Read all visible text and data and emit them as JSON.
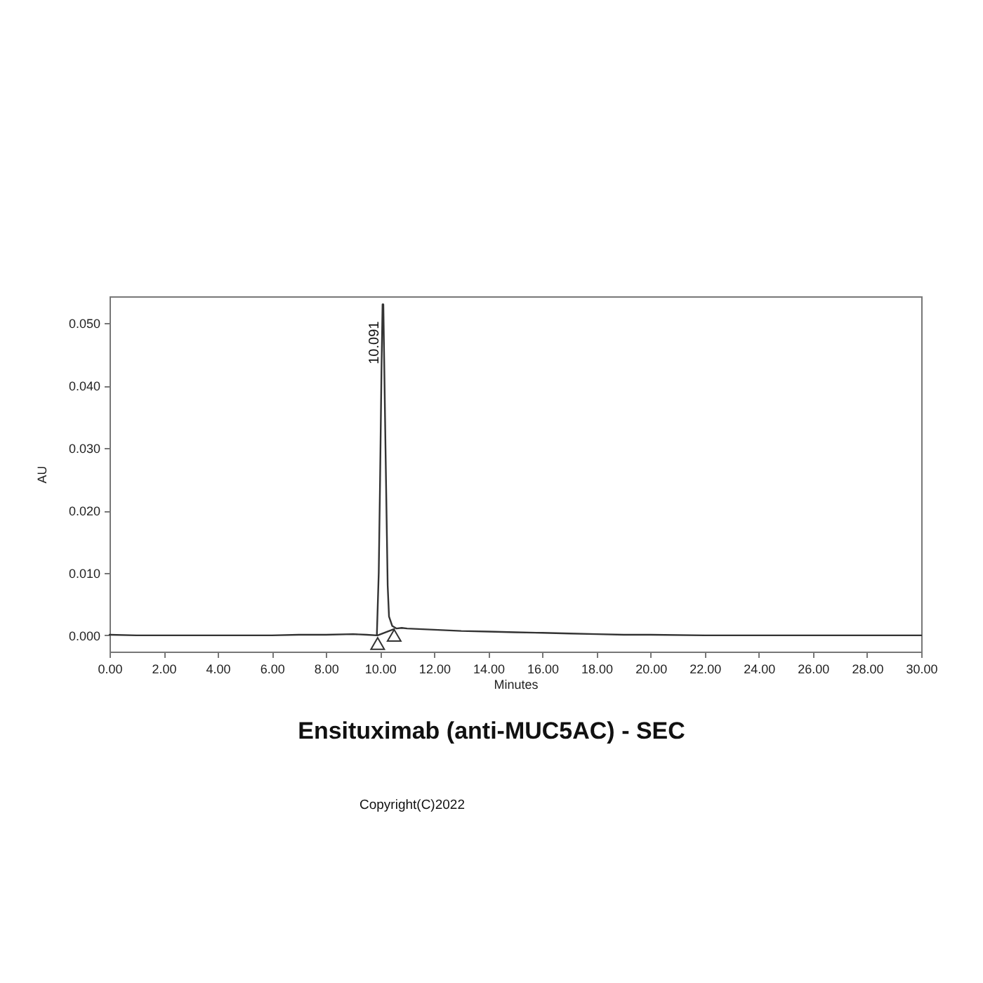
{
  "chart_data": {
    "type": "line",
    "title": "Ensituximab (anti-MUC5AC) - SEC",
    "xlabel": "Minutes",
    "ylabel": "AU",
    "xlim": [
      0,
      30
    ],
    "xticks": [
      {
        "value": 0,
        "label": "0.00"
      },
      {
        "value": 2,
        "label": "2.00"
      },
      {
        "value": 4,
        "label": "4.00"
      },
      {
        "value": 6,
        "label": "6.00"
      },
      {
        "value": 8,
        "label": "8.00"
      },
      {
        "value": 10,
        "label": "10.00"
      },
      {
        "value": 12,
        "label": "12.00"
      },
      {
        "value": 14,
        "label": "14.00"
      },
      {
        "value": 16,
        "label": "16.00"
      },
      {
        "value": 18,
        "label": "18.00"
      },
      {
        "value": 20,
        "label": "20.00"
      },
      {
        "value": 22,
        "label": "22.00"
      },
      {
        "value": 24,
        "label": "24.00"
      },
      {
        "value": 26,
        "label": "26.00"
      },
      {
        "value": 28,
        "label": "28.00"
      },
      {
        "value": 30,
        "label": "30.00"
      }
    ],
    "ylim": [
      -0.0026,
      0.0543
    ],
    "yticks": [
      {
        "value": 0,
        "label": "0.000"
      },
      {
        "value": 0.01,
        "label": "0.010"
      },
      {
        "value": 0.02,
        "label": "0.020"
      },
      {
        "value": 0.03,
        "label": "0.030"
      },
      {
        "value": 0.04,
        "label": "0.040"
      },
      {
        "value": 0.05,
        "label": "0.050"
      }
    ],
    "series": [
      {
        "color": "#333333",
        "x": [
          0,
          1,
          2,
          3,
          4,
          5,
          6,
          7,
          8,
          9,
          9.5,
          9.88,
          9.95,
          10.0,
          10.05,
          10.091,
          10.12,
          10.2,
          10.28,
          10.33,
          10.45,
          10.6,
          10.8,
          11,
          12,
          13,
          14,
          15,
          16,
          17,
          18,
          19,
          20,
          22,
          24,
          26,
          28,
          30
        ],
        "values": [
          0.0001,
          0.0,
          0.0,
          0.0,
          0.0,
          0.0,
          0.0,
          0.0001,
          0.0001,
          0.0002,
          0.0001,
          0.0,
          0.01,
          0.025,
          0.042,
          0.053,
          0.053,
          0.03,
          0.008,
          0.003,
          0.0015,
          0.0011,
          0.0012,
          0.0011,
          0.0009,
          0.0007,
          0.0006,
          0.0005,
          0.0004,
          0.0003,
          0.0002,
          0.0001,
          0.0001,
          0.0,
          0.0,
          0.0,
          0.0,
          0.0
        ]
      },
      {
        "type": "line",
        "color": "#333333",
        "x": [
          9.91,
          10.52
        ],
        "values": [
          0.0,
          0.001
        ]
      },
      {
        "type": "scatter",
        "marker": "triangle",
        "color": "#333333",
        "x": [
          9.91,
          10.52
        ],
        "values": [
          -0.0013,
          0.0
        ]
      }
    ],
    "annotations": [
      {
        "text": "10.091",
        "x": 10.091,
        "y": 0.053
      },
      "Copyright(C)2022"
    ]
  }
}
